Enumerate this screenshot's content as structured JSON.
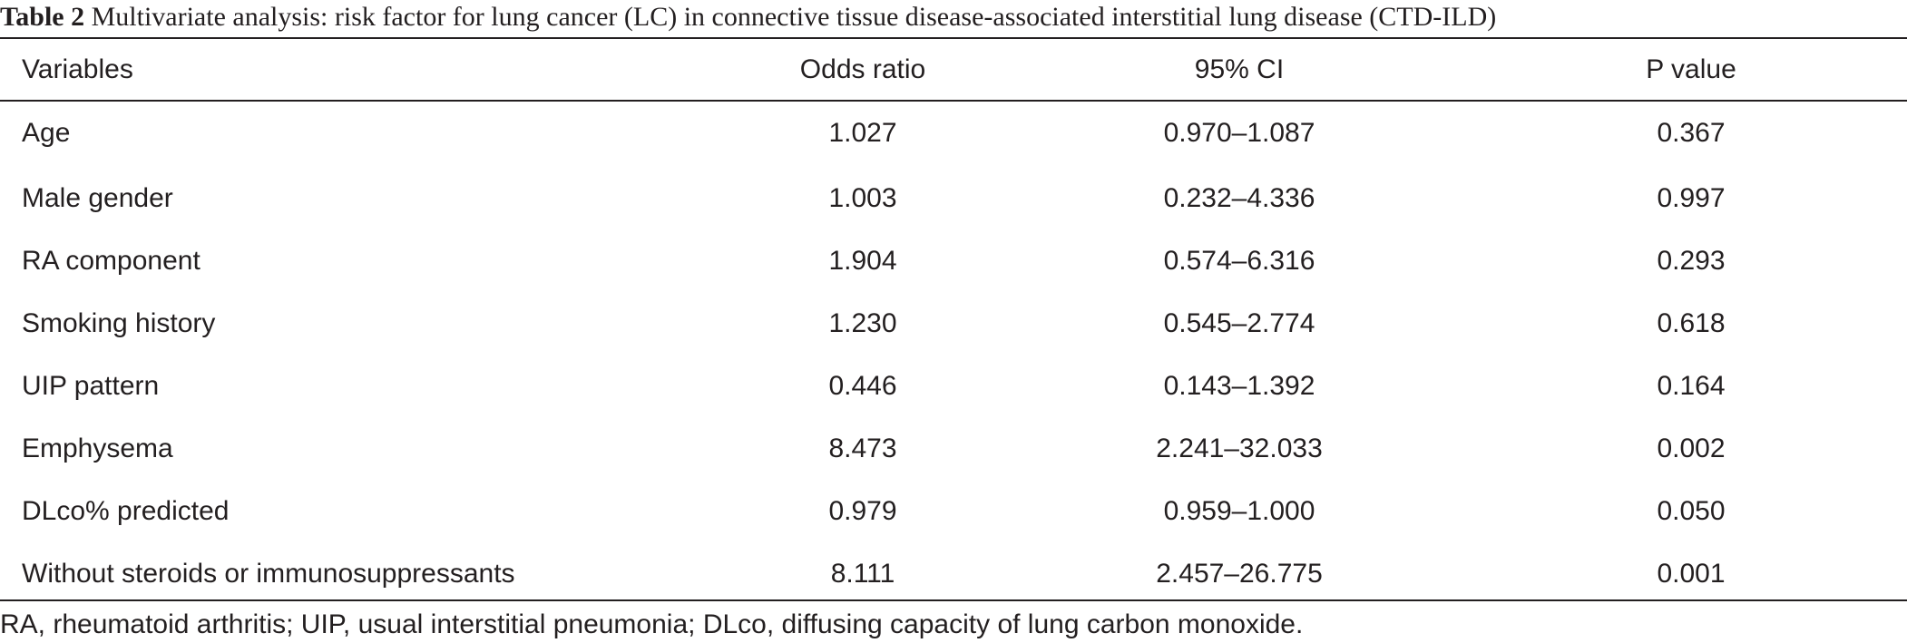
{
  "caption": {
    "label": "Table 2",
    "text": "Multivariate analysis: risk factor for lung cancer (LC) in connective tissue disease-associated interstitial lung disease (CTD-ILD)"
  },
  "header": {
    "variables": "Variables",
    "odds_ratio": "Odds ratio",
    "ci": "95% CI",
    "p_value": "P value"
  },
  "rows": [
    {
      "variable": "Age",
      "odds_ratio": "1.027",
      "ci": "0.970–1.087",
      "p_value": "0.367"
    },
    {
      "variable": "Male gender",
      "odds_ratio": "1.003",
      "ci": "0.232–4.336",
      "p_value": "0.997"
    },
    {
      "variable": "RA component",
      "odds_ratio": "1.904",
      "ci": "0.574–6.316",
      "p_value": "0.293"
    },
    {
      "variable": "Smoking history",
      "odds_ratio": "1.230",
      "ci": "0.545–2.774",
      "p_value": "0.618"
    },
    {
      "variable": "UIP pattern",
      "odds_ratio": "0.446",
      "ci": "0.143–1.392",
      "p_value": "0.164"
    },
    {
      "variable": "Emphysema",
      "odds_ratio": "8.473",
      "ci": "2.241–32.033",
      "p_value": "0.002"
    },
    {
      "variable": "DLco% predicted",
      "odds_ratio": "0.979",
      "ci": "0.959–1.000",
      "p_value": "0.050"
    },
    {
      "variable": "Without steroids or immunosuppressants",
      "odds_ratio": "8.111",
      "ci": "2.457–26.775",
      "p_value": "0.001"
    }
  ],
  "footnote": "RA, rheumatoid arthritis; UIP, usual interstitial pneumonia; DLco, diffusing capacity of lung carbon monoxide."
}
